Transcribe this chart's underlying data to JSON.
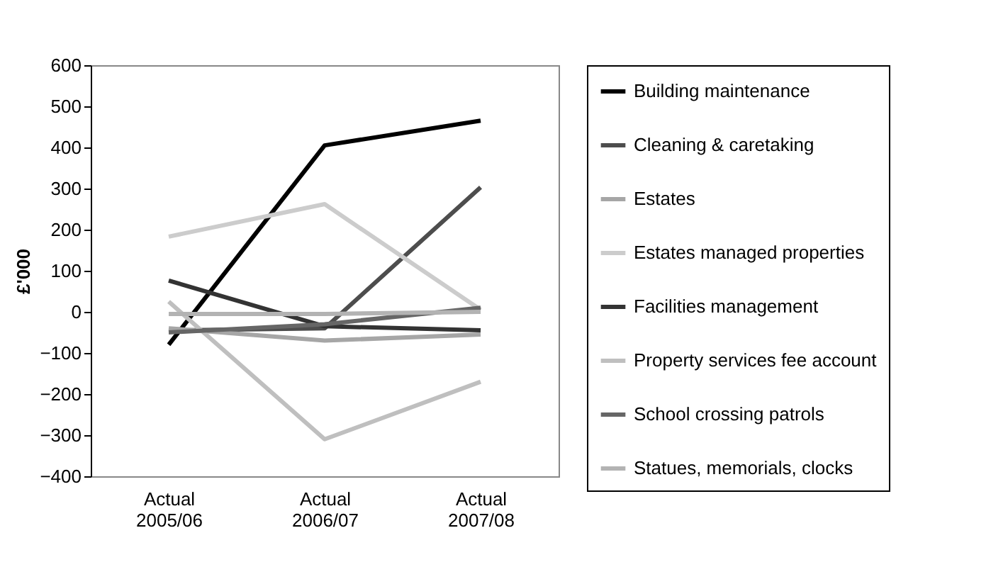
{
  "chart_data": {
    "type": "line",
    "ylabel": "£'000",
    "categories": [
      "Actual 2005/06",
      "Actual 2006/07",
      "Actual 2007/08"
    ],
    "ylim": [
      -400,
      600
    ],
    "yticks": [
      -400,
      -300,
      -200,
      -100,
      0,
      100,
      200,
      300,
      400,
      500,
      600
    ],
    "grid": false,
    "legend": "right",
    "marker": "none",
    "line_style": "solid",
    "series": [
      {
        "name": "Building maintenance",
        "color": "#000000",
        "values": [
          -80,
          405,
          465
        ]
      },
      {
        "name": "Cleaning & caretaking",
        "color": "#4d4d4d",
        "values": [
          -45,
          -40,
          303
        ]
      },
      {
        "name": "Estates",
        "color": "#a6a6a6",
        "values": [
          -40,
          -70,
          -55
        ]
      },
      {
        "name": "Estates managed properties",
        "color": "#cccccc",
        "values": [
          183,
          262,
          5
        ]
      },
      {
        "name": "Facilities management",
        "color": "#333333",
        "values": [
          76,
          -35,
          -45
        ]
      },
      {
        "name": "Property services fee account",
        "color": "#bfbfbf",
        "values": [
          25,
          -310,
          -170
        ]
      },
      {
        "name": "School crossing patrols",
        "color": "#666666",
        "values": [
          -50,
          -30,
          10
        ]
      },
      {
        "name": "Statues, memorials, clocks",
        "color": "#b3b3b3",
        "values": [
          -5,
          -5,
          0
        ]
      }
    ]
  }
}
